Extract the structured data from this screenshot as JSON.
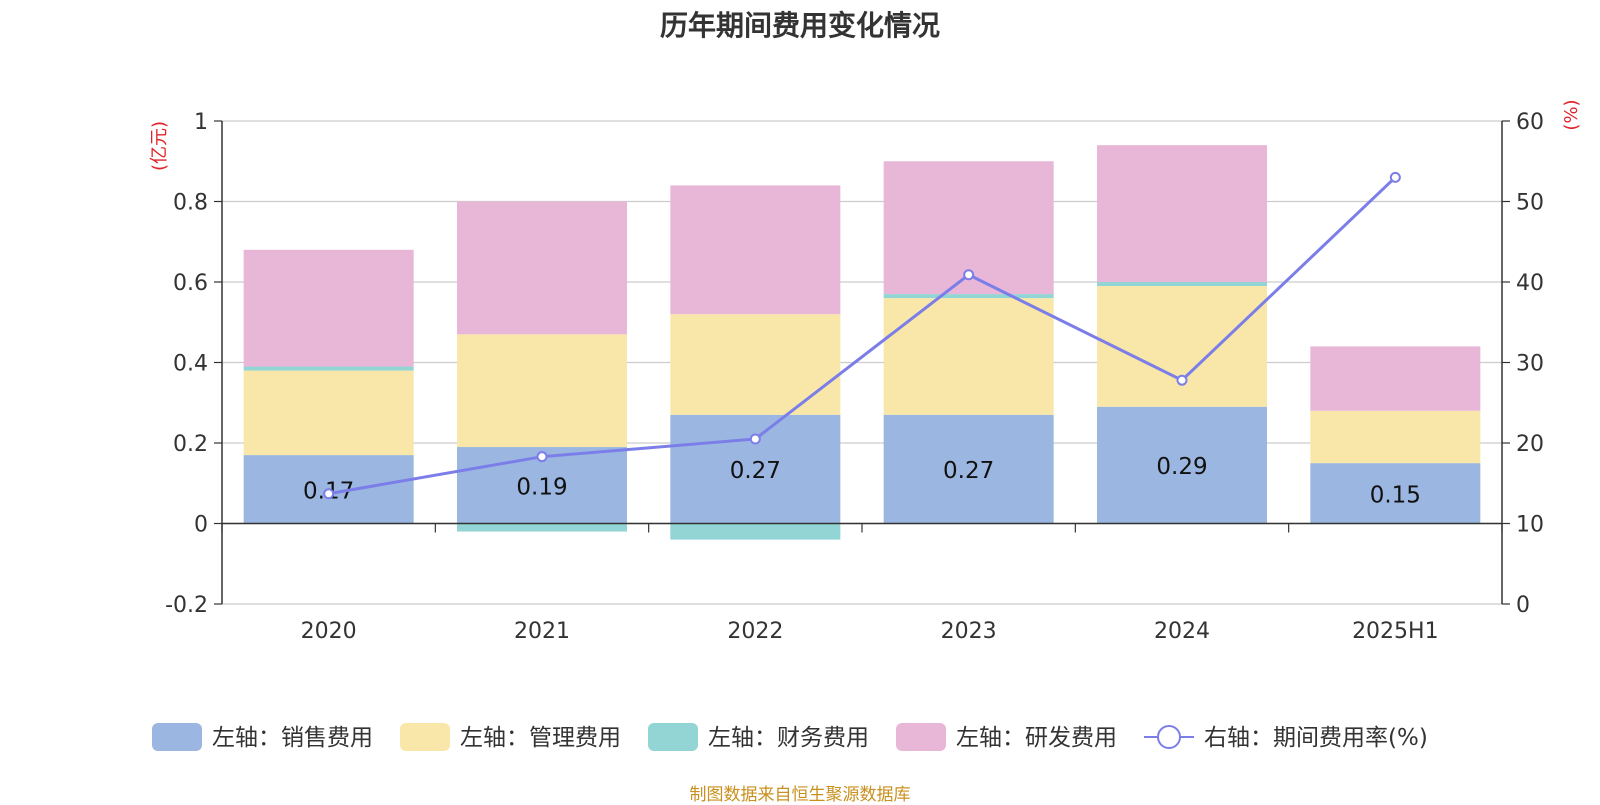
{
  "title": "历年期间费用变化情况",
  "source": "制图数据来自恒生聚源数据库",
  "colors": {
    "sales": "#9bb7e1",
    "admin": "#f8e7a9",
    "finance": "#93d4d4",
    "rnd": "#e8b7d8",
    "rate_line": "#7b7ee8",
    "unit_label": "#e0242b",
    "source_text": "#c9901e"
  },
  "chart_data": {
    "type": "bar",
    "stacked": true,
    "title": "历年期间费用变化情况",
    "categories": [
      "2020",
      "2021",
      "2022",
      "2023",
      "2024",
      "2025H1"
    ],
    "left_axis": {
      "unit": "(亿元)",
      "ylim": [
        -0.2,
        1
      ],
      "ticks": [
        "1",
        "0.8",
        "0.6",
        "0.4",
        "0.2",
        "0",
        "-0.2"
      ],
      "tick_values": [
        1,
        0.8,
        0.6,
        0.4,
        0.2,
        0,
        -0.2
      ]
    },
    "right_axis": {
      "unit": "(%)",
      "ylim": [
        0,
        60
      ],
      "ticks": [
        "60",
        "50",
        "40",
        "30",
        "20",
        "10",
        "0"
      ],
      "tick_values": [
        60,
        50,
        40,
        30,
        20,
        10,
        0
      ]
    },
    "series": [
      {
        "key": "sales",
        "name": "左轴：销售费用",
        "axis": "left",
        "type": "bar",
        "values": [
          0.17,
          0.19,
          0.27,
          0.27,
          0.29,
          0.15
        ],
        "labels": [
          "0.17",
          "0.19",
          "0.27",
          "0.27",
          "0.29",
          "0.15"
        ]
      },
      {
        "key": "admin",
        "name": "左轴：管理费用",
        "axis": "left",
        "type": "bar",
        "values": [
          0.21,
          0.28,
          0.25,
          0.29,
          0.3,
          0.13
        ]
      },
      {
        "key": "finance",
        "name": "左轴：财务费用",
        "axis": "left",
        "type": "bar",
        "values": [
          0.01,
          -0.02,
          -0.04,
          0.01,
          0.01,
          0.0
        ]
      },
      {
        "key": "rnd",
        "name": "左轴：研发费用",
        "axis": "left",
        "type": "bar",
        "values": [
          0.29,
          0.33,
          0.32,
          0.33,
          0.34,
          0.16
        ]
      },
      {
        "key": "rate_line",
        "name": "右轴：期间费用率(%)",
        "axis": "right",
        "type": "line",
        "values": [
          13.7,
          18.3,
          20.5,
          40.9,
          27.8,
          53.0
        ]
      }
    ],
    "grid": true,
    "legend_position": "bottom"
  }
}
